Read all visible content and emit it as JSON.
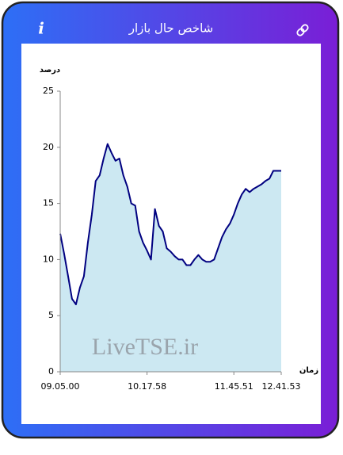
{
  "header": {
    "title": "شاخص حال بازار",
    "info": "i"
  },
  "chart_data": {
    "type": "area",
    "y_label": "درصد",
    "x_label": "زمان",
    "watermark": "LiveTSE.ir",
    "categories": [
      "09.05.00",
      null,
      null,
      null,
      null,
      null,
      null,
      null,
      null,
      null,
      null,
      null,
      null,
      null,
      null,
      null,
      null,
      null,
      null,
      null,
      null,
      null,
      "10.17.58",
      null,
      null,
      null,
      null,
      null,
      null,
      null,
      null,
      null,
      null,
      null,
      null,
      null,
      null,
      null,
      null,
      null,
      null,
      null,
      null,
      null,
      "11.45.51",
      null,
      null,
      null,
      null,
      null,
      null,
      null,
      null,
      null,
      null,
      null,
      "12.41.53"
    ],
    "values": [
      12.3,
      10.5,
      8.5,
      6.5,
      6.0,
      7.5,
      8.5,
      11.5,
      14.0,
      17.0,
      17.5,
      19.0,
      20.3,
      19.5,
      18.8,
      19.0,
      17.5,
      16.5,
      15.0,
      14.8,
      12.5,
      11.5,
      10.8,
      10.0,
      14.5,
      13.0,
      12.5,
      11.0,
      10.7,
      10.3,
      10.0,
      10.0,
      9.5,
      9.5,
      10.0,
      10.4,
      10.0,
      9.8,
      9.8,
      10.0,
      11.0,
      12.0,
      12.7,
      13.2,
      14.0,
      15.0,
      15.8,
      16.3,
      16.0,
      16.3,
      16.5,
      16.7,
      17.0,
      17.2,
      17.9,
      17.9,
      17.9
    ],
    "color": "#000080",
    "fill": "#cce8f2",
    "ylim": [
      0,
      25
    ],
    "yticks": [
      0,
      5,
      10,
      15,
      20,
      25
    ],
    "grid": false
  }
}
